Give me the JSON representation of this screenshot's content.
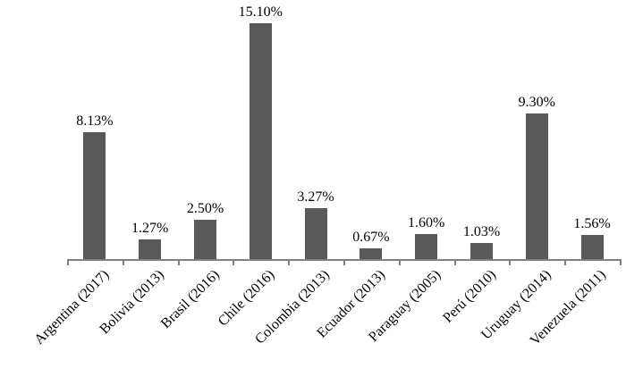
{
  "chart_data": {
    "type": "bar",
    "categories": [
      "Argentina (2017)",
      "Bolivia (2013)",
      "Brasil (2016)",
      "Chile (2016)",
      "Colombia (2013)",
      "Ecuador (2013)",
      "Paraguay (2005)",
      "Perú (2010)",
      "Uruguay (2014)",
      "Venezuela (2011)"
    ],
    "values": [
      8.13,
      1.27,
      2.5,
      15.1,
      3.27,
      0.67,
      1.6,
      1.03,
      9.3,
      1.56
    ],
    "value_labels": [
      "8.13%",
      "1.27%",
      "2.50%",
      "15.10%",
      "3.27%",
      "0.67%",
      "1.60%",
      "1.03%",
      "9.30%",
      "1.56%"
    ],
    "title": "",
    "xlabel": "",
    "ylabel": "",
    "ylim": [
      0,
      15.5
    ],
    "grid": false,
    "legend": false,
    "bar_color": "#595959",
    "axis_color": "#808080",
    "text_color": "#000000"
  }
}
